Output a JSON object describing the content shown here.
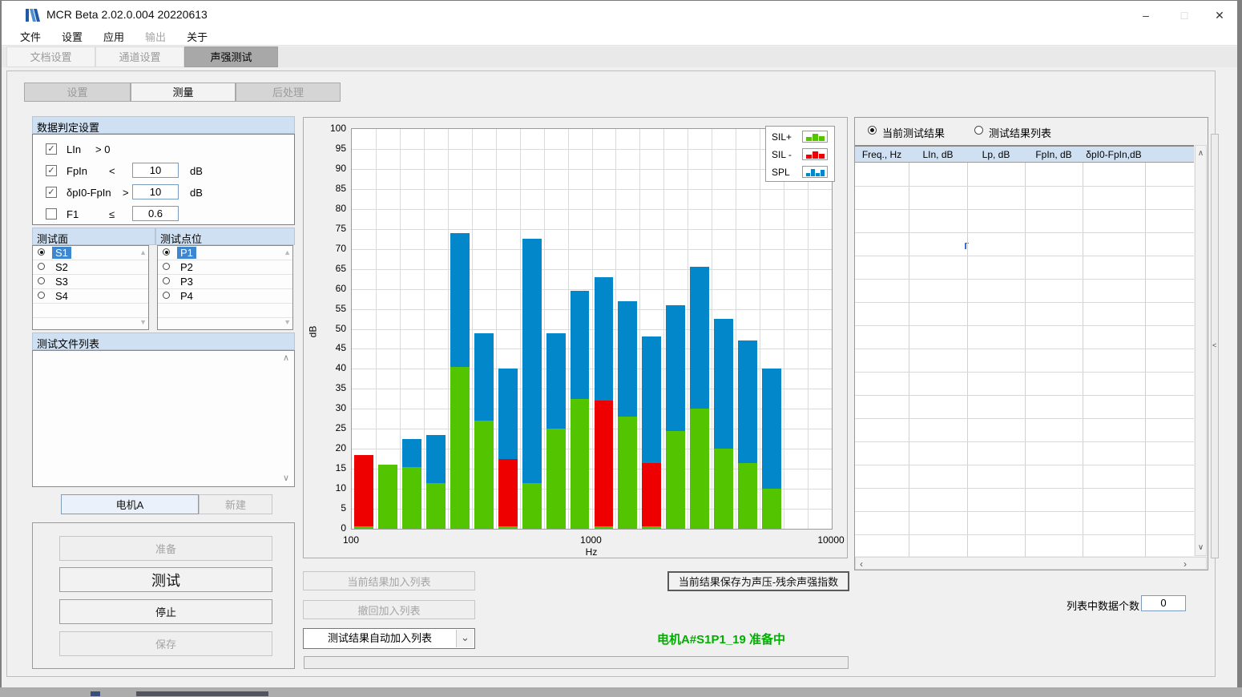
{
  "window": {
    "title": "MCR Beta 2.02.0.004 20220613"
  },
  "icons": {
    "minimize": "–",
    "maximize": "□",
    "close": "✕",
    "chevron_down": "⌄",
    "scroll_up": "∧",
    "scroll_down": "∨",
    "scroll_left": "‹",
    "scroll_right": "›",
    "list_up": "▲",
    "list_down": "▼",
    "collapse_left": "<",
    "check": "✓"
  },
  "menu": {
    "items": [
      {
        "label": "文件",
        "enabled": true
      },
      {
        "label": "设置",
        "enabled": true
      },
      {
        "label": "应用",
        "enabled": true
      },
      {
        "label": "输出",
        "enabled": false
      },
      {
        "label": "关于",
        "enabled": true
      }
    ]
  },
  "main_tabs": [
    {
      "label": "文档设置",
      "state": "disabled"
    },
    {
      "label": "通道设置",
      "state": "disabled"
    },
    {
      "label": "声强测试",
      "state": "active"
    }
  ],
  "sub_tabs": [
    {
      "label": "设置",
      "state": "inactive"
    },
    {
      "label": "测量",
      "state": "active"
    },
    {
      "label": "后处理",
      "state": "inactive"
    }
  ],
  "judge_settings": {
    "title": "数据判定设置",
    "rows": [
      {
        "checked": true,
        "name": "LIn",
        "op": "> 0",
        "value": "",
        "unit": ""
      },
      {
        "checked": true,
        "name": "FpIn",
        "op": "<",
        "value": "10",
        "unit": "dB"
      },
      {
        "checked": true,
        "name": "δpI0-FpIn",
        "op": ">",
        "value": "10",
        "unit": "dB"
      },
      {
        "checked": false,
        "name": "F1",
        "op": "≤",
        "value": "0.6",
        "unit": ""
      }
    ]
  },
  "surfaces": {
    "title": "测试面",
    "items": [
      {
        "label": "S1",
        "selected": true
      },
      {
        "label": "S2",
        "selected": false
      },
      {
        "label": "S3",
        "selected": false
      },
      {
        "label": "S4",
        "selected": false
      }
    ]
  },
  "points": {
    "title": "测试点位",
    "items": [
      {
        "label": "P1",
        "selected": true
      },
      {
        "label": "P2",
        "selected": false
      },
      {
        "label": "P3",
        "selected": false
      },
      {
        "label": "P4",
        "selected": false
      }
    ]
  },
  "file_list": {
    "title": "测试文件列表",
    "items": []
  },
  "project_buttons": {
    "current": "电机A",
    "new": "新建"
  },
  "run_buttons": [
    {
      "label": "准备",
      "enabled": false,
      "big": false
    },
    {
      "label": "测试",
      "enabled": true,
      "big": true
    },
    {
      "label": "停止",
      "enabled": true,
      "big": false
    },
    {
      "label": "保存",
      "enabled": false,
      "big": false
    }
  ],
  "chart_data": {
    "type": "bar",
    "title": "",
    "xlabel": "Hz",
    "ylabel": "dB",
    "xscale": "log",
    "xlim": [
      100,
      10000
    ],
    "xticks": [
      "100",
      "1000",
      "10000"
    ],
    "ylim": [
      0,
      100
    ],
    "ytick_step": 5,
    "grid": true,
    "legend_position": "top-right",
    "colors": {
      "sil_plus": "#53C400",
      "sil_minus": "#EE0000",
      "spl": "#0387CB"
    },
    "legend": [
      {
        "label": "SIL+",
        "series": "sil_plus"
      },
      {
        "label": "SIL -",
        "series": "sil_minus"
      },
      {
        "label": "SPL",
        "series": "spl"
      }
    ],
    "bars": [
      {
        "freq": 100,
        "sil": 18.5,
        "sil_type": "minus",
        "spl": 18.5
      },
      {
        "freq": 125,
        "sil": 16,
        "sil_type": "plus",
        "spl": 16
      },
      {
        "freq": 160,
        "sil": 15.5,
        "sil_type": "plus",
        "spl": 22.5
      },
      {
        "freq": 200,
        "sil": 11.5,
        "sil_type": "plus",
        "spl": 23.5
      },
      {
        "freq": 250,
        "sil": 40.5,
        "sil_type": "plus",
        "spl": 74
      },
      {
        "freq": 315,
        "sil": 27,
        "sil_type": "plus",
        "spl": 49
      },
      {
        "freq": 400,
        "sil": 17.5,
        "sil_type": "minus",
        "spl": 40
      },
      {
        "freq": 500,
        "sil": 11.5,
        "sil_type": "plus",
        "spl": 72.5
      },
      {
        "freq": 630,
        "sil": 25,
        "sil_type": "plus",
        "spl": 49
      },
      {
        "freq": 800,
        "sil": 32.5,
        "sil_type": "plus",
        "spl": 59.5
      },
      {
        "freq": 1000,
        "sil": 32,
        "sil_type": "minus",
        "spl": 63
      },
      {
        "freq": 1250,
        "sil": 28,
        "sil_type": "plus",
        "spl": 57
      },
      {
        "freq": 1600,
        "sil": 16.5,
        "sil_type": "minus",
        "spl": 48
      },
      {
        "freq": 2000,
        "sil": 24.5,
        "sil_type": "plus",
        "spl": 56
      },
      {
        "freq": 2500,
        "sil": 30,
        "sil_type": "plus",
        "spl": 65.5
      },
      {
        "freq": 3150,
        "sil": 20,
        "sil_type": "plus",
        "spl": 52.5
      },
      {
        "freq": 4000,
        "sil": 16.5,
        "sil_type": "plus",
        "spl": 47
      },
      {
        "freq": 5000,
        "sil": 10,
        "sil_type": "plus",
        "spl": 40
      }
    ]
  },
  "list_controls": {
    "add": "当前结果加入列表",
    "undo": "撤回加入列表",
    "auto_dropdown": "测试结果自动加入列表",
    "save_ref": "当前结果保存为声压-残余声强指数"
  },
  "status": {
    "text": "电机A#S1P1_19 准备中",
    "color": "#00AE00"
  },
  "results_panel": {
    "radio_current": {
      "label": "当前测试结果",
      "selected": true
    },
    "radio_list": {
      "label": "测试结果列表",
      "selected": false
    },
    "table": {
      "columns": [
        "Freq., Hz",
        "LIn, dB",
        "Lp, dB",
        "FpIn, dB",
        "δpI0-FpIn,dB",
        ""
      ],
      "rows": []
    },
    "count_label": "列表中数据个数",
    "count_value": "0"
  }
}
